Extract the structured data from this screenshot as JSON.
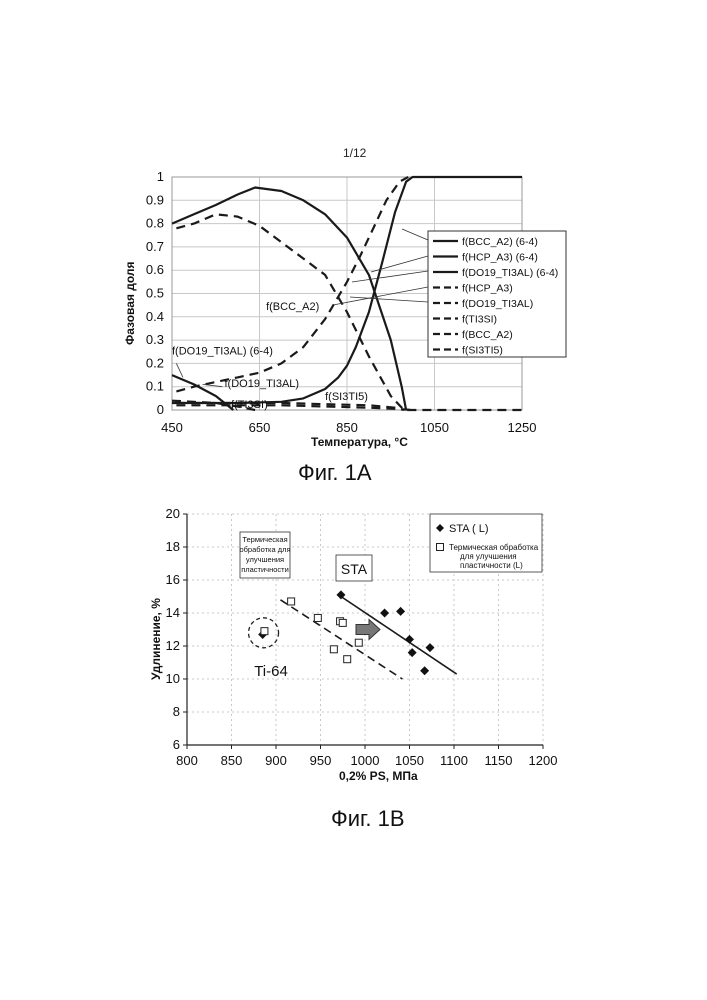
{
  "page_number": "1/12",
  "chart_data": [
    {
      "type": "line",
      "caption": "Фиг. 1A",
      "xlabel": "Температура, °C",
      "ylabel": "Фазовая доля",
      "xlim": [
        450,
        1250
      ],
      "ylim": [
        0,
        1
      ],
      "x_ticks": [
        "450",
        "650",
        "850",
        "1050",
        "1250"
      ],
      "y_ticks": [
        "0",
        "0.1",
        "0.2",
        "0.3",
        "0.4",
        "0.5",
        "0.6",
        "0.7",
        "0.8",
        "0.9",
        "1"
      ],
      "grid": true,
      "legend_position": "right",
      "series": [
        {
          "name": "f(BCC_A2) (6-4)",
          "style": "solid",
          "x": [
            450,
            500,
            550,
            600,
            640,
            700,
            750,
            800,
            850,
            900,
            950,
            975,
            985
          ],
          "y": [
            0.8,
            0.84,
            0.88,
            0.925,
            0.955,
            0.94,
            0.9,
            0.84,
            0.74,
            0.58,
            0.3,
            0.1,
            0.0
          ]
        },
        {
          "name": "f(HCP_A3) (6-4)",
          "style": "solid",
          "x": [
            450,
            600,
            700,
            750,
            800,
            830,
            850,
            870,
            900,
            930,
            960,
            985,
            1000,
            1250
          ],
          "y": [
            0.03,
            0.03,
            0.035,
            0.05,
            0.09,
            0.14,
            0.19,
            0.27,
            0.42,
            0.63,
            0.85,
            0.98,
            1.0,
            1.0
          ]
        },
        {
          "name": "f(DO19_TI3AL) (6-4)",
          "style": "solid",
          "x": [
            450,
            500,
            550,
            590
          ],
          "y": [
            0.15,
            0.11,
            0.06,
            0.0
          ]
        },
        {
          "name": "f(HCP_A3)",
          "style": "dashed",
          "x": [
            460,
            480,
            500,
            550,
            600,
            650,
            700,
            750,
            800,
            850,
            900,
            950,
            980,
            1000,
            1250
          ],
          "y": [
            0.78,
            0.79,
            0.8,
            0.84,
            0.83,
            0.79,
            0.72,
            0.65,
            0.58,
            0.42,
            0.23,
            0.06,
            0.0,
            0.0,
            0.0
          ]
        },
        {
          "name": "f(DO19_TI3AL)",
          "style": "dashed",
          "x": [
            460,
            500,
            550,
            600,
            650,
            700,
            750,
            800,
            850,
            880,
            910,
            940,
            970,
            990
          ],
          "y": [
            0.08,
            0.1,
            0.12,
            0.14,
            0.16,
            0.2,
            0.27,
            0.39,
            0.55,
            0.66,
            0.78,
            0.9,
            0.98,
            1.0
          ]
        },
        {
          "name": "f(TI3SI)",
          "style": "dashed",
          "x": [
            450,
            500,
            550,
            600,
            640
          ],
          "y": [
            0.04,
            0.035,
            0.03,
            0.015,
            0.0
          ]
        },
        {
          "name": "f(BCC_A2)",
          "style": "dashed",
          "x": [
            460,
            600,
            700,
            800,
            900,
            960,
            980
          ],
          "y": [
            0.03,
            0.03,
            0.03,
            0.025,
            0.02,
            0.01,
            0.0
          ]
        },
        {
          "name": "f(SI3TI5)",
          "style": "dashed",
          "x": [
            460,
            600,
            700,
            800,
            900,
            960,
            1000
          ],
          "y": [
            0.02,
            0.02,
            0.02,
            0.015,
            0.01,
            0.005,
            0.0
          ]
        }
      ],
      "annotations": [
        {
          "text": "f(BCC_A2)",
          "x": 665,
          "y": 0.42
        },
        {
          "text": "f(DO19_TI3AL) (6-4)",
          "x": 450,
          "y": 0.23
        },
        {
          "text": "f(DO19_TI3AL)",
          "x": 570,
          "y": 0.09
        },
        {
          "text": "f(TI3SI)",
          "x": 585,
          "y": 0.0
        },
        {
          "text": "f(SI3TI5)",
          "x": 800,
          "y": 0.035
        }
      ]
    },
    {
      "type": "scatter",
      "caption": "Фиг. 1B",
      "xlabel": "0,2% PS, МПа",
      "ylabel": "Удлинение, %",
      "xlim": [
        800,
        1200
      ],
      "ylim": [
        6,
        20
      ],
      "x_ticks": [
        "800",
        "850",
        "900",
        "950",
        "1000",
        "1050",
        "1100",
        "1150",
        "1200"
      ],
      "y_ticks": [
        "6",
        "8",
        "10",
        "12",
        "14",
        "16",
        "18",
        "20"
      ],
      "grid": true,
      "legend_position": "top-right",
      "series": [
        {
          "name": "STA ( L)",
          "marker": "filled-diamond",
          "x": [
            885,
            973,
            1022,
            1040,
            1050,
            1053,
            1067,
            1073
          ],
          "y": [
            12.7,
            15.1,
            14.0,
            14.1,
            12.4,
            11.6,
            10.5,
            11.9
          ]
        },
        {
          "name": "Термическая обработка для улучшения пластичности (L)",
          "marker": "open-square",
          "x": [
            887,
            917,
            947,
            965,
            972,
            975,
            980,
            993
          ],
          "y": [
            12.9,
            14.7,
            13.7,
            11.8,
            13.5,
            13.4,
            11.2,
            12.2
          ]
        }
      ],
      "trend_lines": [
        {
          "style": "solid",
          "x": [
            973,
            1103
          ],
          "y": [
            15.0,
            10.3
          ]
        },
        {
          "style": "dashed",
          "x": [
            905,
            1042
          ],
          "y": [
            14.8,
            10.0
          ]
        }
      ],
      "annotations": {
        "boxed_note": [
          "Термическая",
          "обработка для",
          "улучшения",
          "пластичности"
        ],
        "sta_label": "STA",
        "ti64_label": "Ti-64"
      }
    }
  ]
}
